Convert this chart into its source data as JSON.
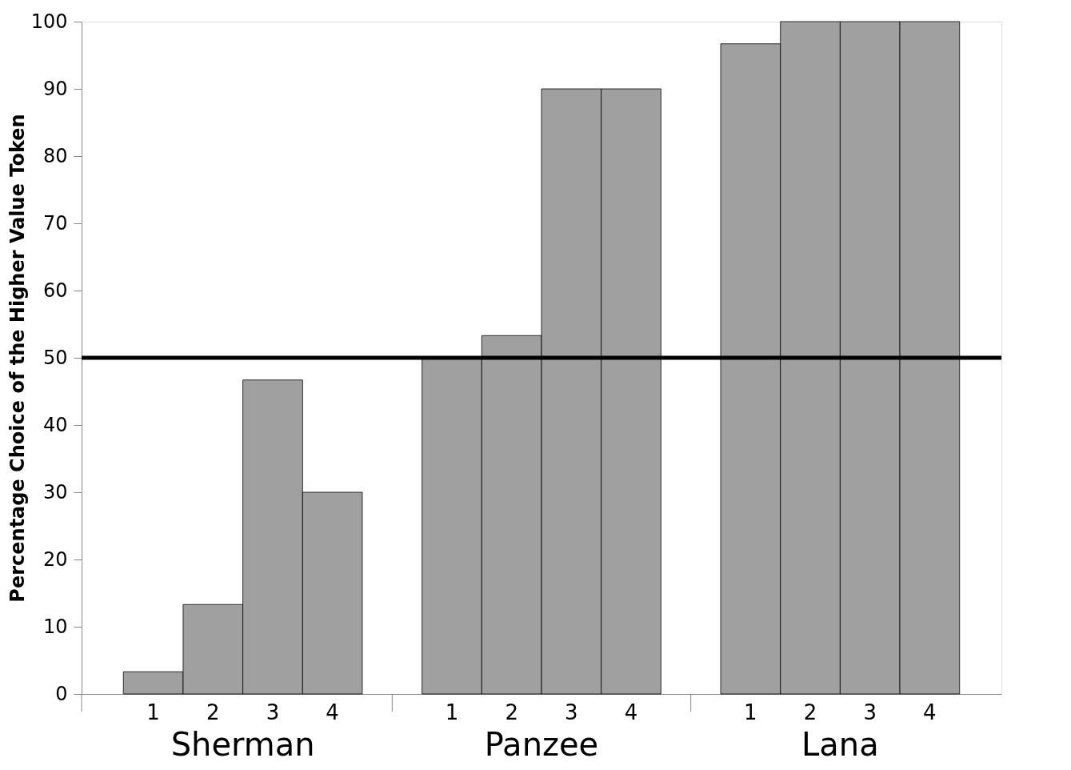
{
  "chart_data": {
    "type": "bar",
    "ylabel": "Percentage Choice of the Higher Value Token",
    "categories": [
      "1",
      "2",
      "3",
      "4",
      "1",
      "2",
      "3",
      "4",
      "1",
      "2",
      "3",
      "4"
    ],
    "values": [
      3.3,
      13.3,
      46.7,
      30,
      50,
      53.3,
      90,
      90,
      96.7,
      100,
      100,
      100
    ],
    "color": "#a0a0a0",
    "ylim": [
      0,
      100
    ],
    "yticks": [
      0,
      10,
      20,
      30,
      40,
      50,
      60,
      70,
      80,
      90,
      100
    ],
    "grid": false,
    "ref_lines": [
      {
        "axis": "y",
        "value": 50,
        "color": "#000000"
      }
    ],
    "annotations": [
      "Sherman",
      "Panzee",
      "Lana"
    ]
  }
}
